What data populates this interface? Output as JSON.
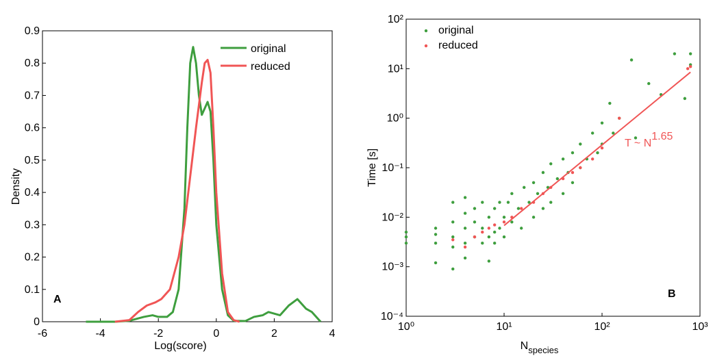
{
  "chart_data": [
    {
      "type": "line",
      "panel_label": "A",
      "x_label": "Log(score)",
      "y_label": "Density",
      "xlim": [
        -6,
        4
      ],
      "xticks": [
        -6,
        -4,
        -2,
        0,
        2,
        4
      ],
      "ylim": [
        0,
        0.9
      ],
      "yticks": [
        0,
        0.1,
        0.2,
        0.3,
        0.4,
        0.5,
        0.6,
        0.7,
        0.8,
        0.9
      ],
      "legend": "upper right",
      "series": [
        {
          "name": "original",
          "color": "#3e9e3e",
          "x": [
            -4.5,
            -3.5,
            -3,
            -2.5,
            -2.2,
            -2,
            -1.7,
            -1.5,
            -1.3,
            -1.1,
            -1,
            -0.9,
            -0.8,
            -0.7,
            -0.6,
            -0.5,
            -0.4,
            -0.3,
            -0.2,
            -0.1,
            0,
            0.2,
            0.4,
            0.6,
            1,
            1.3,
            1.6,
            1.8,
            2.2,
            2.5,
            2.8,
            3.1,
            3.3,
            3.6
          ],
          "values": [
            0,
            0,
            0.003,
            0.015,
            0.02,
            0.015,
            0.015,
            0.03,
            0.1,
            0.35,
            0.6,
            0.8,
            0.85,
            0.8,
            0.7,
            0.64,
            0.66,
            0.68,
            0.65,
            0.5,
            0.3,
            0.1,
            0.02,
            0.003,
            0.002,
            0.015,
            0.02,
            0.03,
            0.02,
            0.05,
            0.07,
            0.04,
            0.03,
            0
          ]
        },
        {
          "name": "reduced",
          "color": "#f05555",
          "x": [
            -3.5,
            -3,
            -2.7,
            -2.4,
            -2.1,
            -1.9,
            -1.6,
            -1.3,
            -1.1,
            -0.9,
            -0.7,
            -0.5,
            -0.4,
            -0.3,
            -0.2,
            -0.1,
            0,
            0.2,
            0.4,
            0.6,
            0.8
          ],
          "values": [
            0,
            0.005,
            0.03,
            0.05,
            0.06,
            0.07,
            0.1,
            0.2,
            0.3,
            0.45,
            0.6,
            0.74,
            0.8,
            0.81,
            0.77,
            0.6,
            0.4,
            0.15,
            0.03,
            0.005,
            0
          ]
        }
      ]
    },
    {
      "type": "scatter",
      "panel_label": "B",
      "x_label": {
        "text": "N",
        "subscript": "species"
      },
      "y_label": "Time [s]",
      "log_scale": true,
      "xlim": [
        1,
        1000
      ],
      "xticks": [
        {
          "value": 1,
          "label": "10⁰"
        },
        {
          "value": 10,
          "label": "10¹"
        },
        {
          "value": 100,
          "label": "10²"
        },
        {
          "value": 1000,
          "label": "10³"
        }
      ],
      "ylim": [
        0.0001,
        100
      ],
      "yticks": [
        {
          "value": 0.0001,
          "label": "10⁻⁴"
        },
        {
          "value": 0.001,
          "label": "10⁻³"
        },
        {
          "value": 0.01,
          "label": "10⁻²"
        },
        {
          "value": 0.1,
          "label": "10⁻¹"
        },
        {
          "value": 1,
          "label": "10⁰"
        },
        {
          "value": 10,
          "label": "10¹"
        },
        {
          "value": 100,
          "label": "10²"
        }
      ],
      "legend": "upper left",
      "annotation": {
        "text": "T ~ N",
        "superscript": "1.65"
      },
      "fit_line": {
        "color": "#f05555",
        "x": [
          10,
          800
        ],
        "y": [
          0.0068,
          8.5
        ]
      },
      "series": [
        {
          "name": "original",
          "color": "#3e9e3e",
          "x": [
            1,
            1,
            1,
            2,
            2,
            2,
            2,
            3,
            3,
            3,
            3,
            3,
            4,
            4,
            4,
            4,
            4,
            5,
            5,
            5,
            6,
            6,
            6,
            7,
            7,
            7,
            8,
            8,
            8,
            9,
            9,
            10,
            10,
            11,
            12,
            12,
            14,
            15,
            16,
            18,
            20,
            20,
            22,
            25,
            25,
            28,
            30,
            30,
            35,
            40,
            40,
            45,
            50,
            50,
            60,
            60,
            70,
            80,
            90,
            100,
            100,
            120,
            130,
            150,
            200,
            220,
            300,
            400,
            550,
            700,
            800,
            800
          ],
          "y": [
            0.003,
            0.005,
            0.004,
            0.003,
            0.006,
            0.0045,
            0.0012,
            0.0025,
            0.004,
            0.008,
            0.02,
            0.0009,
            0.003,
            0.006,
            0.012,
            0.025,
            0.0015,
            0.004,
            0.008,
            0.015,
            0.003,
            0.006,
            0.02,
            0.004,
            0.01,
            0.0013,
            0.005,
            0.015,
            0.003,
            0.006,
            0.02,
            0.01,
            0.004,
            0.02,
            0.008,
            0.03,
            0.015,
            0.006,
            0.04,
            0.02,
            0.01,
            0.05,
            0.03,
            0.015,
            0.08,
            0.04,
            0.02,
            0.12,
            0.06,
            0.03,
            0.15,
            0.08,
            0.2,
            0.05,
            0.3,
            0.1,
            0.15,
            0.5,
            0.2,
            0.8,
            0.3,
            2,
            0.5,
            1,
            15,
            0.4,
            5,
            3,
            20,
            2.5,
            20,
            12
          ]
        },
        {
          "name": "reduced",
          "color": "#f05555",
          "x": [
            3,
            4,
            5,
            6,
            7,
            8,
            10,
            12,
            15,
            20,
            25,
            30,
            40,
            50,
            60,
            80,
            100,
            150,
            750,
            800
          ],
          "y": [
            0.0035,
            0.0025,
            0.004,
            0.005,
            0.006,
            0.007,
            0.008,
            0.01,
            0.015,
            0.02,
            0.03,
            0.04,
            0.06,
            0.08,
            0.1,
            0.15,
            0.25,
            1,
            10,
            11
          ]
        }
      ]
    }
  ]
}
